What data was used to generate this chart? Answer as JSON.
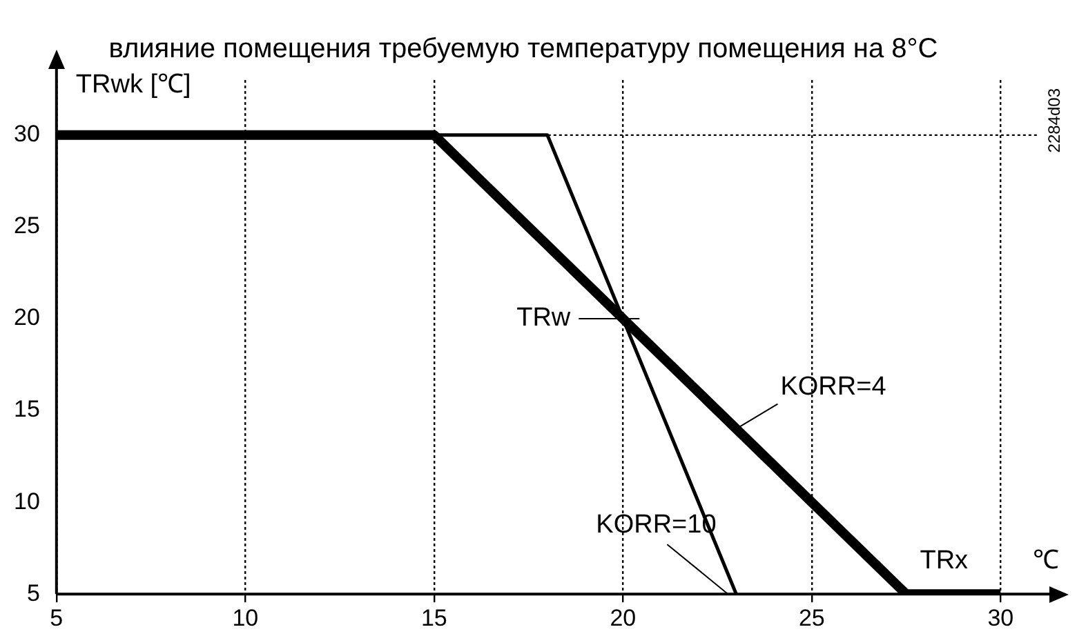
{
  "chart_data": {
    "type": "line",
    "title": "влияние помещения требуемую температуру помещения на 8°С",
    "xlabel": "℃",
    "ylabel": "TRwk [℃]",
    "series": [
      {
        "name": "KORR=4",
        "color": "#000000",
        "x": [
          5,
          15,
          27.5,
          30
        ],
        "values": [
          30,
          30,
          5,
          5
        ]
      },
      {
        "name": "KORR=10",
        "color": "#000000",
        "x": [
          15,
          18,
          20,
          23
        ],
        "values": [
          30,
          30,
          20,
          5
        ]
      }
    ],
    "xlim": [
      5,
      31
    ],
    "ylim": [
      5,
      33
    ],
    "xticks": [
      5,
      10,
      15,
      20,
      25,
      30
    ],
    "yticks": [
      5,
      10,
      15,
      20,
      25,
      30
    ],
    "grid": "x",
    "legend": false,
    "marker": "none",
    "line_style": "solid",
    "ref_lines": [
      {
        "axis": "y",
        "value": 30,
        "line_style": "dotted"
      }
    ],
    "annotations": [
      {
        "text": "TRw",
        "x": 20,
        "y": 20
      },
      {
        "text": "TRx",
        "x": 28.5,
        "y": 5
      },
      "2284d03"
    ]
  }
}
